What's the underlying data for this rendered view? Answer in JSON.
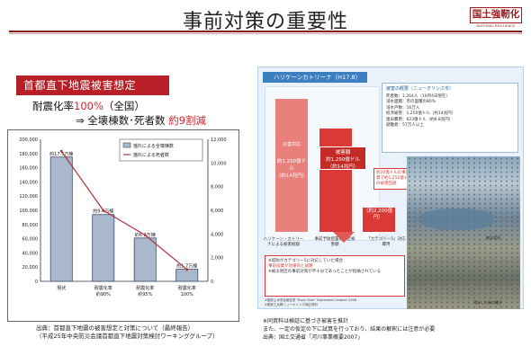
{
  "header": {
    "title": "事前対策の重要性",
    "logo": "国土強靭化",
    "logo_sub": "NATIONAL RESILIENCE"
  },
  "left": {
    "banner": "首都直下地震被害想定",
    "rate_prefix": "耐震化率",
    "rate_value": "100%",
    "rate_suffix": "（全国）",
    "reduce_prefix": "⇒ 全壊棟数･死者数 ",
    "reduce_value": "約9割減",
    "source_line1": "出典：首都直下地震の被害想定と対策について（最終報告）",
    "source_line2": "（平成25年中央防災会議首都直下地震対策検討ワーキンググループ）"
  },
  "right": {
    "title": "ハリケーンカトリーナ（H17.8）",
    "bar1_label": "災害対応",
    "bar1_value": "約1,250億ドル",
    "bar1_yen": "（約14兆円）",
    "bar2_label": "被害額",
    "bar2_value": "約1,250億ドル",
    "bar2_yen": "（約14兆円）",
    "bar3_value": "約20億ドル",
    "bar3_yen": "（約2,200億円）",
    "small_note": "約20億ドルの事前投資で約1,250億ドルの被害回避",
    "cap1": "ハリケーン・カトリーナによる被害総額",
    "cap2": "事前予防措置の想定被害額",
    "cap3": "「カテゴリー5」対応費用",
    "note_line1": "※堤防がカテゴリー5に対応していた場合",
    "note_red": "事前投資が効果的と試算",
    "note_line2": "※被災地区の事前対策が不十分であったことが指摘されている",
    "foot1": "※国家土木学会報告書 \"River Side\" September-October 2006",
    "foot2": "※国家工兵隊ニューオリンズ地区資料",
    "summary_title": "被害の概要（ニューオリンズ市）",
    "summary_lines": [
      "死者数：1,264人（10月4日現在）",
      "浸水面積：市の面積の80%",
      "浸水戸数：16万人",
      "経済被害：1,250億ドル（約14兆円）",
      "復旧費用：623億ドル（約6.8兆円）",
      "避難者：57万人以上"
    ],
    "photo_caption1": "被災状況",
    "photo_caption2": "浸水した街の様子",
    "source_line1": "※同資料は検証に基づき被害を推計",
    "source_line2": "また、一定の仮定の下に試算を行っており、結果の解釈には注意が必要",
    "source_line3": "出典：国土交通省「河川事業概要2007」"
  },
  "chart_data": {
    "type": "bar",
    "categories": [
      "現状",
      "耐震化率\n約90%",
      "耐震化率\n約95%",
      "耐震化率\n100%"
    ],
    "series": [
      {
        "name": "揺れによる全壊棟数",
        "values": [
          175000,
          94000,
          61000,
          17000
        ]
      },
      {
        "name": "揺れによる死者数",
        "values": [
          11000,
          6000,
          3900,
          1000
        ]
      }
    ],
    "bar_labels": [
      "約17.5万棟",
      "約9.4万棟",
      "約6.1万棟",
      "約1.7万棟"
    ],
    "ylim": [
      0,
      200000
    ],
    "y2lim": [
      0,
      12000
    ],
    "yticks": [
      "0",
      "20,000",
      "40,000",
      "60,000",
      "80,000",
      "100,000",
      "120,000",
      "140,000",
      "160,000",
      "180,000",
      "200,000"
    ],
    "y2ticks": [
      "0",
      "2,000",
      "4,000",
      "6,000",
      "8,000",
      "10,000",
      "12,000"
    ],
    "legend_position": "upper-right"
  }
}
